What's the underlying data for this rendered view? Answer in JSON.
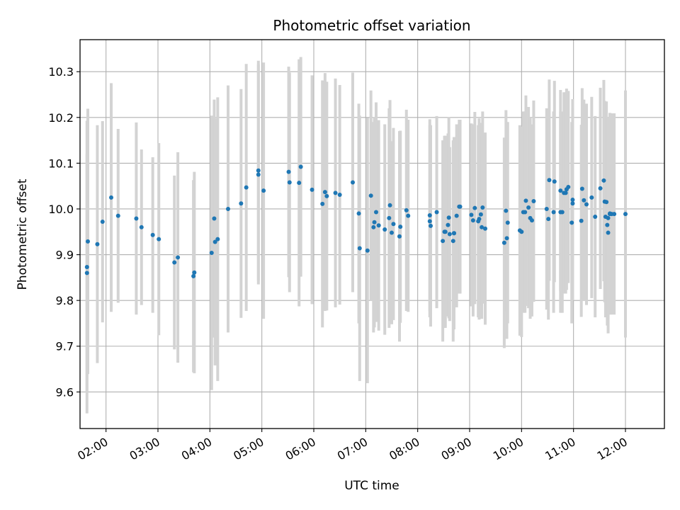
{
  "chart_data": {
    "type": "scatter",
    "title": "Photometric offset variation",
    "xlabel": "UTC time",
    "ylabel": "Photometric offset",
    "grid": true,
    "legend": "none",
    "xlim": [
      "01:30",
      "12:45"
    ],
    "ylim": [
      9.52,
      10.37
    ],
    "x_ticks": [
      "02:00",
      "03:00",
      "04:00",
      "05:00",
      "06:00",
      "07:00",
      "08:00",
      "09:00",
      "10:00",
      "11:00",
      "12:00"
    ],
    "y_ticks": [
      9.6,
      9.7,
      9.8,
      9.9,
      10.0,
      10.1,
      10.2,
      10.3
    ],
    "y_tick_labels": [
      "9.6",
      "9.7",
      "9.8",
      "9.9",
      "10.0",
      "10.1",
      "10.2",
      "10.3"
    ],
    "colors": {
      "points": "#1f77b4",
      "errorbars": "#d3d3d3",
      "grid": "#b0b0b0",
      "axes": "#000000"
    },
    "series": [
      {
        "marker": "point",
        "x": [
          "01:38",
          "01:38",
          "01:39",
          "01:50",
          "01:56",
          "02:06",
          "02:14",
          "02:35",
          "02:41",
          "02:54",
          "03:01",
          "03:19",
          "03:23",
          "03:41",
          "03:42",
          "04:02",
          "04:05",
          "04:06",
          "04:09",
          "04:21",
          "04:36",
          "04:42",
          "04:56",
          "04:56",
          "05:02",
          "05:31",
          "05:32",
          "05:43",
          "05:45",
          "05:58",
          "06:10",
          "06:13",
          "06:15",
          "06:25",
          "06:30",
          "06:45",
          "06:52",
          "06:53",
          "07:02",
          "07:06",
          "07:09",
          "07:10",
          "07:12",
          "07:15",
          "07:22",
          "07:27",
          "07:28",
          "07:30",
          "07:32",
          "07:39",
          "07:40",
          "07:47",
          "07:49",
          "08:14",
          "08:14",
          "08:15",
          "08:22",
          "08:29",
          "08:31",
          "08:32",
          "08:35",
          "08:36",
          "08:37",
          "08:41",
          "08:42",
          "08:42",
          "08:45",
          "08:48",
          "08:49",
          "09:02",
          "09:04",
          "09:06",
          "09:10",
          "09:11",
          "09:13",
          "09:14",
          "09:15",
          "09:18",
          "09:40",
          "09:42",
          "09:43",
          "09:44",
          "09:58",
          "10:00",
          "10:02",
          "10:04",
          "10:05",
          "10:08",
          "10:10",
          "10:12",
          "10:14",
          "10:29",
          "10:31",
          "10:32",
          "10:37",
          "10:38",
          "10:45",
          "10:45",
          "10:47",
          "10:49",
          "10:51",
          "10:52",
          "10:54",
          "10:58",
          "10:59",
          "10:59",
          "11:09",
          "11:10",
          "11:12",
          "11:15",
          "11:21",
          "11:25",
          "11:31",
          "11:35",
          "11:36",
          "11:37",
          "11:38",
          "11:39",
          "11:40",
          "11:40",
          "11:42",
          "11:42",
          "11:44",
          "11:47",
          "12:00"
        ],
        "y": [
          9.873,
          9.86,
          9.929,
          9.923,
          9.972,
          10.025,
          9.985,
          9.979,
          9.96,
          9.943,
          9.934,
          9.883,
          9.894,
          9.853,
          9.861,
          9.904,
          9.979,
          9.928,
          9.934,
          10.0,
          10.012,
          10.047,
          10.075,
          10.084,
          10.04,
          10.081,
          10.058,
          10.057,
          10.092,
          10.042,
          10.011,
          10.037,
          10.028,
          10.035,
          10.031,
          10.058,
          9.99,
          9.914,
          9.909,
          10.029,
          9.96,
          9.971,
          9.993,
          9.964,
          9.955,
          9.98,
          10.008,
          9.948,
          9.967,
          9.94,
          9.961,
          9.997,
          9.985,
          9.986,
          9.973,
          9.963,
          9.993,
          9.93,
          9.95,
          9.95,
          9.965,
          9.981,
          9.945,
          9.93,
          9.947,
          9.947,
          9.985,
          10.005,
          10.005,
          9.987,
          9.975,
          10.002,
          9.973,
          9.978,
          9.988,
          9.96,
          10.003,
          9.957,
          9.926,
          9.996,
          9.936,
          9.97,
          9.953,
          9.95,
          9.993,
          9.993,
          10.018,
          10.003,
          9.98,
          9.975,
          10.017,
          10.0,
          9.978,
          10.063,
          9.993,
          10.06,
          10.04,
          9.993,
          9.993,
          10.035,
          10.035,
          10.043,
          10.048,
          9.97,
          10.012,
          10.02,
          9.974,
          10.044,
          10.019,
          10.01,
          10.025,
          9.983,
          10.045,
          10.062,
          10.016,
          9.983,
          10.015,
          9.965,
          9.98,
          9.948,
          9.99,
          9.989,
          9.989,
          9.989,
          9.989
        ],
        "err": [
          0.32,
          0.26,
          0.29,
          0.26,
          0.22,
          0.25,
          0.19,
          0.21,
          0.17,
          0.17,
          0.21,
          0.19,
          0.23,
          0.21,
          0.22,
          0.3,
          0.26,
          0.27,
          0.31,
          0.27,
          0.25,
          0.27,
          0.24,
          0.24,
          0.28,
          0.23,
          0.24,
          0.27,
          0.24,
          0.25,
          0.27,
          0.26,
          0.25,
          0.25,
          0.24,
          0.24,
          0.24,
          0.29,
          0.29,
          0.23,
          0.23,
          0.23,
          0.24,
          0.23,
          0.23,
          0.24,
          0.23,
          0.2,
          0.21,
          0.23,
          0.21,
          0.22,
          0.21,
          0.21,
          0.21,
          0.22,
          0.21,
          0.22,
          0.21,
          0.21,
          0.2,
          0.22,
          0.19,
          0.22,
          0.21,
          0.21,
          0.2,
          0.19,
          0.19,
          0.2,
          0.21,
          0.21,
          0.21,
          0.22,
          0.2,
          0.2,
          0.21,
          0.21,
          0.23,
          0.22,
          0.22,
          0.22,
          0.23,
          0.23,
          0.22,
          0.22,
          0.23,
          0.22,
          0.22,
          0.21,
          0.22,
          0.22,
          0.22,
          0.22,
          0.22,
          0.22,
          0.22,
          0.22,
          0.22,
          0.22,
          0.22,
          0.22,
          0.21,
          0.22,
          0.21,
          0.22,
          0.21,
          0.22,
          0.22,
          0.22,
          0.22,
          0.22,
          0.22,
          0.22,
          0.22,
          0.22,
          0.22,
          0.22,
          0.22,
          0.22,
          0.22,
          0.22,
          0.22,
          0.22,
          0.27
        ]
      }
    ]
  }
}
